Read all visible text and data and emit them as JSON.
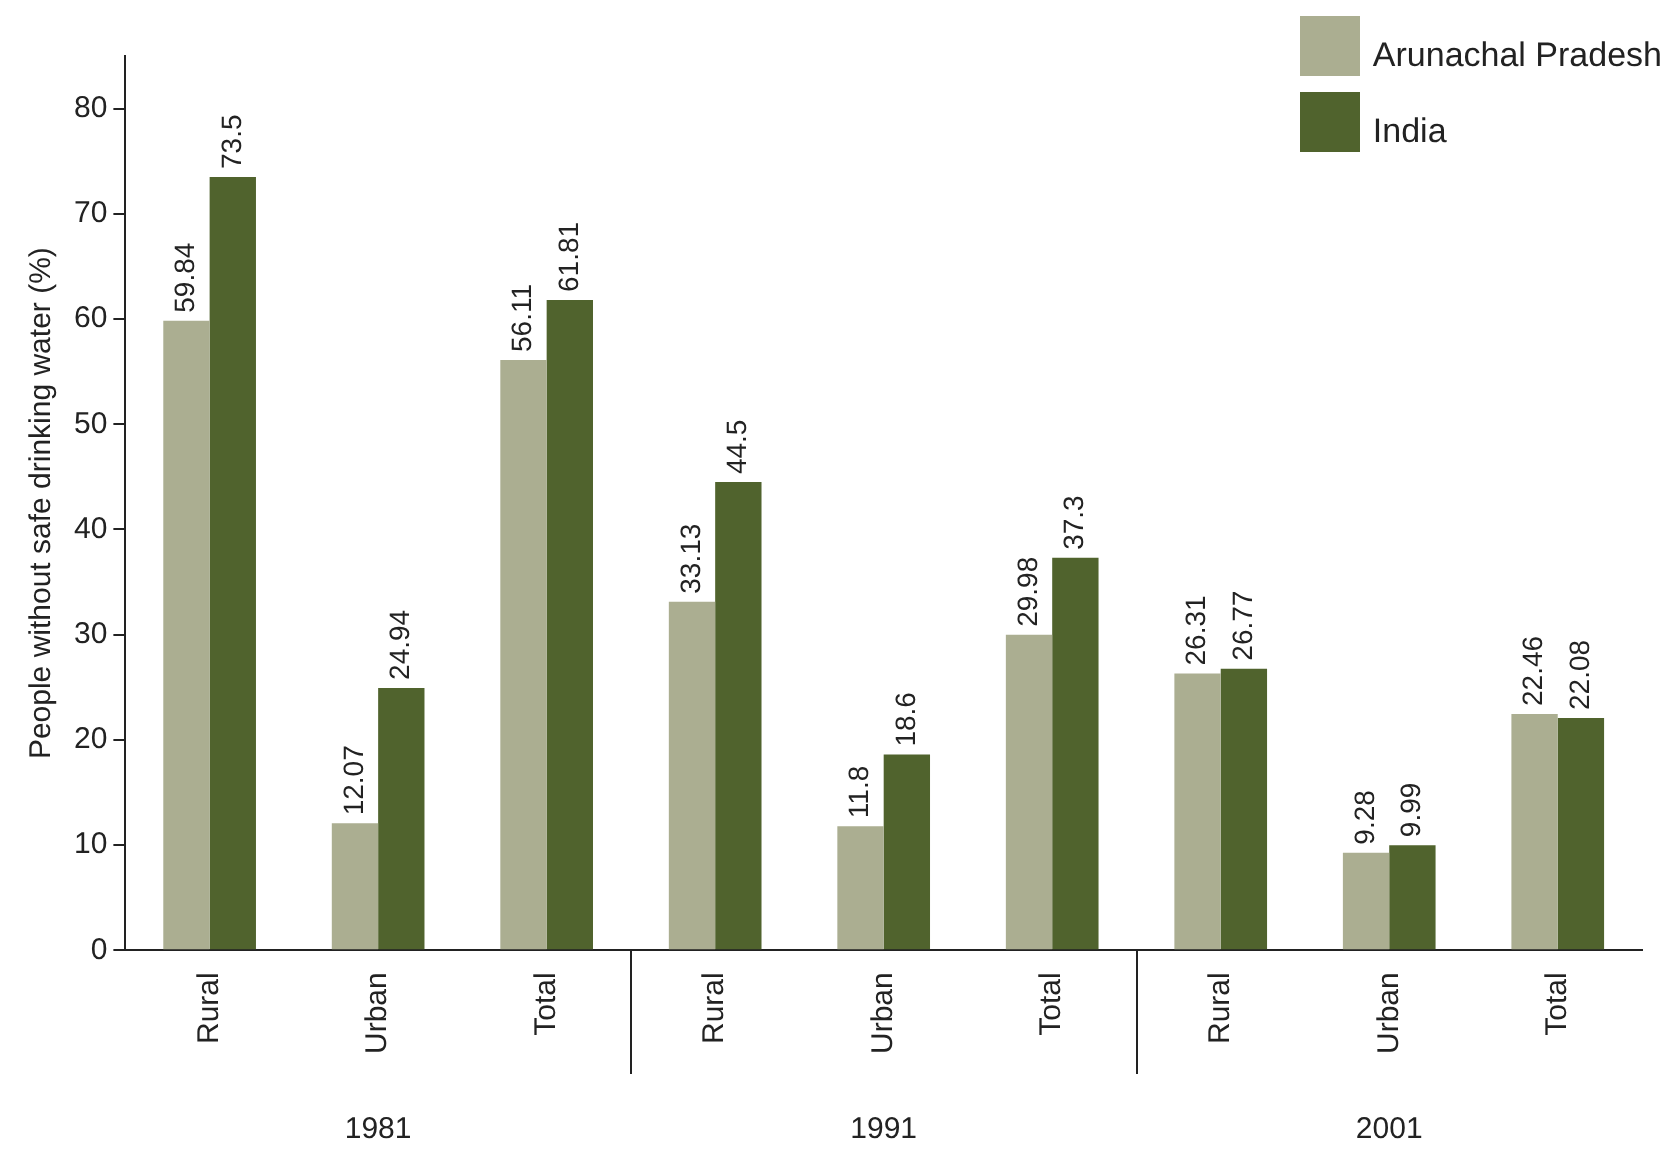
{
  "chart_data": {
    "type": "bar",
    "ylabel": "People without safe drinking water (%)",
    "categories": [
      "Rural",
      "Urban",
      "Total",
      "Rural",
      "Urban",
      "Total",
      "Rural",
      "Urban",
      "Total"
    ],
    "series": [
      {
        "name": "Arunachal Pradesh",
        "color": "#abae91",
        "values": [
          59.84,
          12.07,
          56.11,
          33.13,
          11.8,
          29.98,
          26.31,
          9.28,
          22.46
        ]
      },
      {
        "name": "India",
        "color": "#50632d",
        "values": [
          73.5,
          24.94,
          61.81,
          44.5,
          18.6,
          37.3,
          26.77,
          9.99,
          22.08
        ]
      }
    ],
    "annotations": [
      "1981",
      "1991",
      "2001"
    ],
    "ylim": [
      0,
      85
    ],
    "yticks": [
      0,
      10,
      20,
      30,
      40,
      50,
      60,
      70,
      80
    ],
    "grid": false,
    "legend": "top right",
    "data_labels": true
  }
}
